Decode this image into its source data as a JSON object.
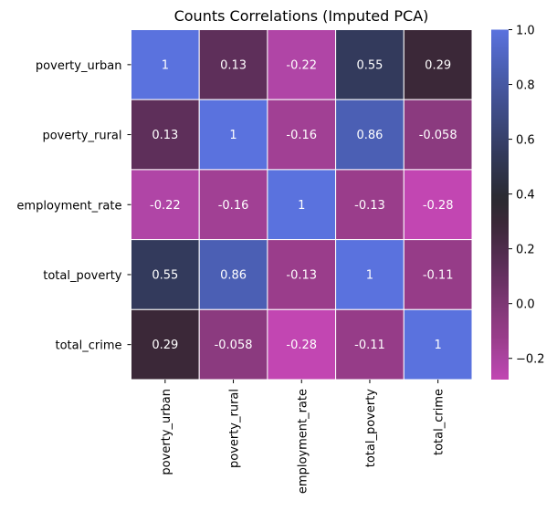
{
  "chart_data": {
    "type": "heatmap",
    "title": "Counts Correlations (Imputed PCA)",
    "xlabel": "",
    "ylabel": "",
    "row_labels": [
      "poverty_urban",
      "poverty_rural",
      "employment_rate",
      "total_poverty",
      "total_crime"
    ],
    "col_labels": [
      "poverty_urban",
      "poverty_rural",
      "employment_rate",
      "total_poverty",
      "total_crime"
    ],
    "values": [
      [
        1,
        0.13,
        -0.22,
        0.55,
        0.29
      ],
      [
        0.13,
        1,
        -0.16,
        0.86,
        -0.058
      ],
      [
        -0.22,
        -0.16,
        1,
        -0.13,
        -0.28
      ],
      [
        0.55,
        0.86,
        -0.13,
        1,
        -0.11
      ],
      [
        0.29,
        -0.058,
        -0.28,
        -0.11,
        1
      ]
    ],
    "annotations": [
      [
        "1",
        "0.13",
        "-0.22",
        "0.55",
        "0.29"
      ],
      [
        "0.13",
        "1",
        "-0.16",
        "0.86",
        "-0.058"
      ],
      [
        "-0.22",
        "-0.16",
        "1",
        "-0.13",
        "-0.28"
      ],
      [
        "0.55",
        "0.86",
        "-0.13",
        "1",
        "-0.11"
      ],
      [
        "0.29",
        "-0.058",
        "-0.28",
        "-0.11",
        "1"
      ]
    ],
    "colorbar": {
      "vmin": -0.2775,
      "vmax": 1.0,
      "center": 0.36,
      "ticks": [
        1.0,
        0.8,
        0.6,
        0.4,
        0.2,
        0.0,
        -0.2
      ],
      "tick_labels": [
        "1.0",
        "0.8",
        "0.6",
        "0.4",
        "0.2",
        "0.0",
        "−0.2"
      ],
      "placement": "right"
    },
    "colormap": {
      "name": "diverging magenta-dark-blue",
      "stops": [
        {
          "value": -0.2775,
          "color": "#c246b2"
        },
        {
          "value": -0.22,
          "color": "#b045a6"
        },
        {
          "value": -0.13,
          "color": "#9a3d8b"
        },
        {
          "value": -0.058,
          "color": "#8b3a7f"
        },
        {
          "value": 0.13,
          "color": "#5e2f5a"
        },
        {
          "value": 0.29,
          "color": "#3b2838"
        },
        {
          "value": 0.38,
          "color": "#2a2a30"
        },
        {
          "value": 0.55,
          "color": "#333a5c"
        },
        {
          "value": 0.86,
          "color": "#4b5fb4"
        },
        {
          "value": 1.0,
          "color": "#5a72de"
        }
      ]
    },
    "grid": false,
    "cell_separator_color": "#ffffff",
    "annotation_color": "#ffffff"
  }
}
